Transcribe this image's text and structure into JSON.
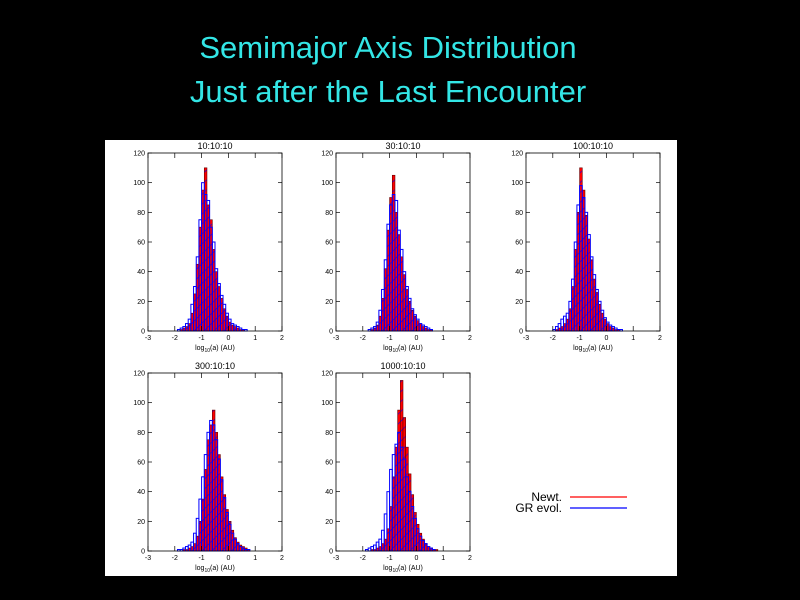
{
  "slide": {
    "title_lines": [
      "Semimajor Axis Distribution",
      "Just after the Last Encounter"
    ]
  },
  "chart_data": [
    {
      "type": "histogram",
      "title": "10:10:10",
      "x_label": [
        "log",
        "10",
        "(a) (AU)"
      ],
      "bins": [
        -2.0,
        -1.9,
        -1.8,
        -1.7,
        -1.6,
        -1.5,
        -1.4,
        -1.3,
        -1.2,
        -1.1,
        -1.0,
        -0.9,
        -0.8,
        -0.7,
        -0.6,
        -0.5,
        -0.4,
        -0.3,
        -0.2,
        -0.1,
        0.0,
        0.1,
        0.2,
        0.3,
        0.4,
        0.5,
        0.6,
        0.7,
        0.8,
        0.9,
        1.0
      ],
      "series": [
        {
          "name": "Newt.",
          "color": "#ff0000",
          "values": [
            0,
            0,
            1,
            2,
            3,
            5,
            12,
            25,
            45,
            70,
            95,
            110,
            85,
            75,
            55,
            40,
            30,
            22,
            15,
            10,
            6,
            4,
            3,
            2,
            1,
            1,
            0,
            0,
            0,
            0
          ]
        },
        {
          "name": "GR evol.",
          "color": "#0000ff",
          "values": [
            0,
            1,
            2,
            3,
            5,
            8,
            18,
            30,
            50,
            75,
            100,
            92,
            88,
            70,
            60,
            42,
            32,
            24,
            18,
            12,
            8,
            5,
            4,
            3,
            2,
            1,
            1,
            0,
            0,
            0
          ]
        }
      ],
      "xlim": [
        -3,
        2
      ],
      "xticks": [
        -3,
        -2,
        -1,
        0,
        1,
        2
      ],
      "ylim": [
        0,
        120
      ],
      "yticks": [
        0,
        20,
        40,
        60,
        80,
        100,
        120
      ]
    },
    {
      "type": "histogram",
      "title": "30:10:10",
      "x_label": [
        "log",
        "10",
        "(a) (AU)"
      ],
      "bins": [
        -2.0,
        -1.9,
        -1.8,
        -1.7,
        -1.6,
        -1.5,
        -1.4,
        -1.3,
        -1.2,
        -1.1,
        -1.0,
        -0.9,
        -0.8,
        -0.7,
        -0.6,
        -0.5,
        -0.4,
        -0.3,
        -0.2,
        -0.1,
        0.0,
        0.1,
        0.2,
        0.3,
        0.4,
        0.5,
        0.6,
        0.7,
        0.8,
        0.9,
        1.0
      ],
      "series": [
        {
          "name": "Newt.",
          "color": "#ff0000",
          "values": [
            0,
            0,
            0,
            1,
            2,
            4,
            10,
            22,
            42,
            68,
            90,
            105,
            80,
            65,
            50,
            38,
            28,
            20,
            14,
            10,
            7,
            5,
            3,
            2,
            1,
            1,
            0,
            0,
            0,
            0
          ]
        },
        {
          "name": "GR evol.",
          "color": "#0000ff",
          "values": [
            0,
            0,
            1,
            2,
            3,
            6,
            14,
            28,
            48,
            72,
            85,
            92,
            88,
            68,
            55,
            40,
            30,
            22,
            15,
            11,
            8,
            5,
            4,
            3,
            2,
            1,
            0,
            0,
            0,
            0
          ]
        }
      ],
      "xlim": [
        -3,
        2
      ],
      "xticks": [
        -3,
        -2,
        -1,
        0,
        1,
        2
      ],
      "ylim": [
        0,
        120
      ],
      "yticks": [
        0,
        20,
        40,
        60,
        80,
        100,
        120
      ]
    },
    {
      "type": "histogram",
      "title": "100:10:10",
      "x_label": [
        "log",
        "10",
        "(a) (AU)"
      ],
      "bins": [
        -2.0,
        -1.9,
        -1.8,
        -1.7,
        -1.6,
        -1.5,
        -1.4,
        -1.3,
        -1.2,
        -1.1,
        -1.0,
        -0.9,
        -0.8,
        -0.7,
        -0.6,
        -0.5,
        -0.4,
        -0.3,
        -0.2,
        -0.1,
        0.0,
        0.1,
        0.2,
        0.3,
        0.4,
        0.5,
        0.6,
        0.7,
        0.8,
        0.9,
        1.0
      ],
      "series": [
        {
          "name": "Newt.",
          "color": "#ff0000",
          "values": [
            0,
            1,
            2,
            3,
            5,
            8,
            15,
            30,
            55,
            80,
            110,
            95,
            78,
            62,
            48,
            35,
            26,
            18,
            12,
            8,
            5,
            3,
            2,
            1,
            1,
            0,
            0,
            0,
            0,
            0
          ]
        },
        {
          "name": "GR evol.",
          "color": "#0000ff",
          "values": [
            1,
            3,
            5,
            8,
            10,
            12,
            20,
            35,
            60,
            85,
            98,
            90,
            80,
            65,
            50,
            38,
            28,
            20,
            14,
            9,
            6,
            4,
            3,
            2,
            1,
            1,
            0,
            0,
            0,
            0
          ]
        }
      ],
      "xlim": [
        -3,
        2
      ],
      "xticks": [
        -3,
        -2,
        -1,
        0,
        1,
        2
      ],
      "ylim": [
        0,
        120
      ],
      "yticks": [
        0,
        20,
        40,
        60,
        80,
        100,
        120
      ]
    },
    {
      "type": "histogram",
      "title": "300:10:10",
      "x_label": [
        "log",
        "10",
        "(a) (AU)"
      ],
      "bins": [
        -2.0,
        -1.9,
        -1.8,
        -1.7,
        -1.6,
        -1.5,
        -1.4,
        -1.3,
        -1.2,
        -1.1,
        -1.0,
        -0.9,
        -0.8,
        -0.7,
        -0.6,
        -0.5,
        -0.4,
        -0.3,
        -0.2,
        -0.1,
        0.0,
        0.1,
        0.2,
        0.3,
        0.4,
        0.5,
        0.6,
        0.7,
        0.8,
        0.9,
        1.0
      ],
      "series": [
        {
          "name": "Newt.",
          "color": "#ff0000",
          "values": [
            0,
            0,
            0,
            1,
            1,
            2,
            3,
            5,
            10,
            20,
            35,
            55,
            75,
            85,
            95,
            80,
            65,
            50,
            38,
            28,
            20,
            14,
            9,
            6,
            4,
            3,
            2,
            1,
            0,
            0
          ]
        },
        {
          "name": "GR evol.",
          "color": "#0000ff",
          "values": [
            0,
            1,
            1,
            2,
            3,
            4,
            6,
            12,
            22,
            35,
            50,
            65,
            80,
            88,
            85,
            75,
            62,
            48,
            36,
            26,
            18,
            12,
            8,
            5,
            3,
            2,
            1,
            1,
            0,
            0
          ]
        }
      ],
      "xlim": [
        -3,
        2
      ],
      "xticks": [
        -3,
        -2,
        -1,
        0,
        1,
        2
      ],
      "ylim": [
        0,
        120
      ],
      "yticks": [
        0,
        20,
        40,
        60,
        80,
        100,
        120
      ]
    },
    {
      "type": "histogram",
      "title": "1000:10:10",
      "x_label": [
        "log",
        "10",
        "(a) (AU)"
      ],
      "bins": [
        -2.0,
        -1.9,
        -1.8,
        -1.7,
        -1.6,
        -1.5,
        -1.4,
        -1.3,
        -1.2,
        -1.1,
        -1.0,
        -0.9,
        -0.8,
        -0.7,
        -0.6,
        -0.5,
        -0.4,
        -0.3,
        -0.2,
        -0.1,
        0.0,
        0.1,
        0.2,
        0.3,
        0.4,
        0.5,
        0.6,
        0.7,
        0.8,
        0.9,
        1.0
      ],
      "series": [
        {
          "name": "Newt.",
          "color": "#ff0000",
          "values": [
            0,
            0,
            0,
            1,
            1,
            2,
            3,
            5,
            8,
            15,
            30,
            50,
            70,
            95,
            115,
            90,
            70,
            52,
            38,
            26,
            18,
            12,
            8,
            5,
            3,
            2,
            1,
            1,
            0,
            0
          ]
        },
        {
          "name": "GR evol.",
          "color": "#0000ff",
          "values": [
            0,
            1,
            2,
            3,
            4,
            6,
            8,
            14,
            25,
            40,
            55,
            65,
            72,
            80,
            70,
            62,
            50,
            40,
            30,
            22,
            15,
            10,
            7,
            5,
            3,
            2,
            1,
            0,
            0,
            0
          ]
        }
      ],
      "xlim": [
        -3,
        2
      ],
      "xticks": [
        -3,
        -2,
        -1,
        0,
        1,
        2
      ],
      "ylim": [
        0,
        120
      ],
      "yticks": [
        0,
        20,
        40,
        60,
        80,
        100,
        120
      ]
    }
  ]
}
